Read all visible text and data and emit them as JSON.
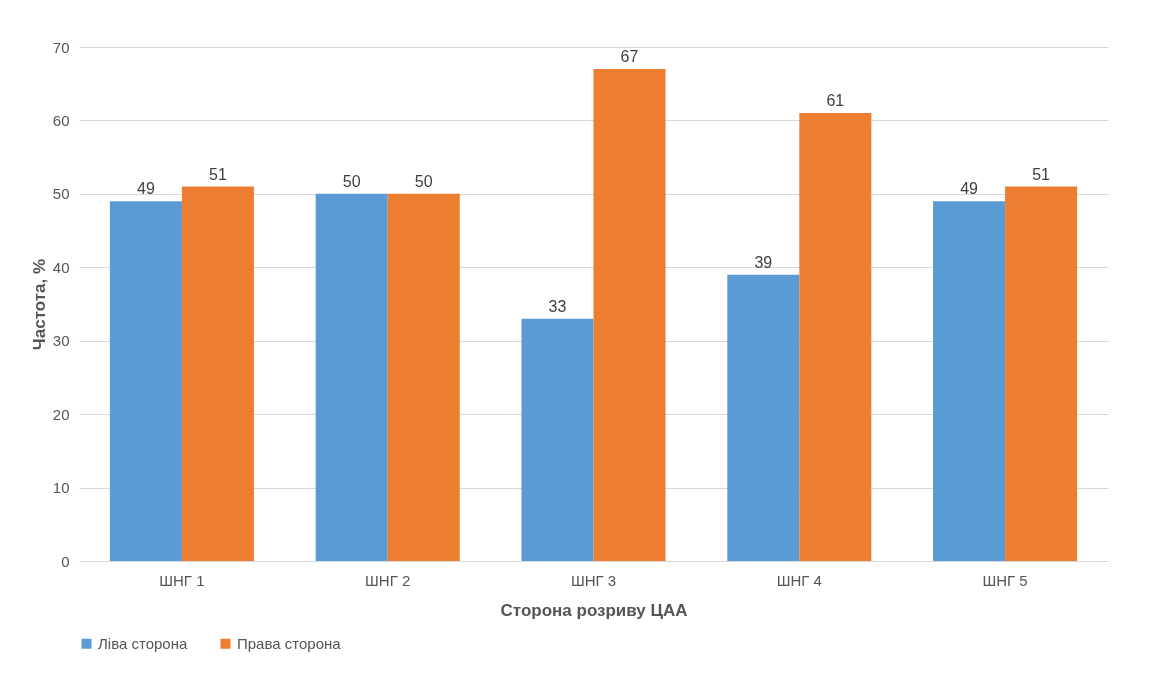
{
  "chart_data": {
    "type": "bar",
    "xlabel": "Сторона розриву ЦАА",
    "ylabel": "Частота, %",
    "categories": [
      "ШНГ 1",
      "ШНГ 2",
      "ШНГ 3",
      "ШНГ 4",
      "ШНГ 5"
    ],
    "series": [
      {
        "name": "Ліва сторона",
        "color": "#5b9bd5",
        "values": [
          49,
          50,
          33,
          39,
          49
        ]
      },
      {
        "name": "Права сторона",
        "color": "#ed7d31",
        "values": [
          51,
          50,
          67,
          61,
          51
        ]
      }
    ],
    "ylim": [
      0,
      70
    ],
    "yticks": [
      0,
      10,
      20,
      30,
      40,
      50,
      60,
      70
    ],
    "grid": "y",
    "legend": "bottom",
    "data_labels": true
  }
}
